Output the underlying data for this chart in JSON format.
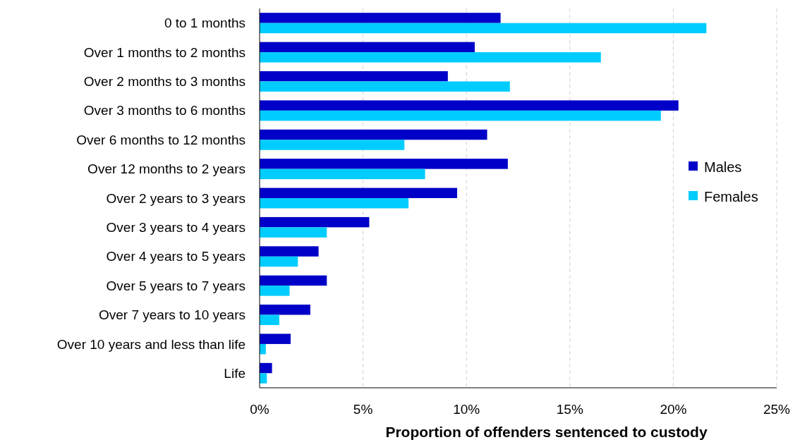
{
  "chart_data": {
    "type": "bar",
    "orientation": "horizontal",
    "xlabel": "Proportion of offenders sentenced to custody",
    "categories": [
      "0 to 1 months",
      "Over 1 months to 2 months",
      "Over 2 months to 3 months",
      "Over 3 months to 6 months",
      "Over 6 months to 12 months",
      "Over 12 months to 2 years",
      "Over 2 years to 3 years",
      "Over 3 years to 4 years",
      "Over 4 years to 5 years",
      "Over 5 years to 7 years",
      "Over 7 years to 10 years",
      "Over 10 years and less than life",
      "Life"
    ],
    "series": [
      {
        "name": "Males",
        "color": "#0000c8",
        "values": [
          11.65,
          10.4,
          9.1,
          20.25,
          11.0,
          12.0,
          9.55,
          5.3,
          2.85,
          3.25,
          2.45,
          1.5,
          0.6
        ]
      },
      {
        "name": "Females",
        "color": "#00ccff",
        "values": [
          21.6,
          16.5,
          12.1,
          19.4,
          7.0,
          8.0,
          7.2,
          3.25,
          1.85,
          1.45,
          0.95,
          0.3,
          0.35
        ]
      }
    ],
    "xlim": [
      0,
      25
    ],
    "xticks": [
      {
        "value": 0,
        "label": "0%"
      },
      {
        "value": 5,
        "label": "5%"
      },
      {
        "value": 10,
        "label": "10%"
      },
      {
        "value": 15,
        "label": "15%"
      },
      {
        "value": 20,
        "label": "20%"
      },
      {
        "value": 25,
        "label": "25%"
      }
    ],
    "grid": "x",
    "legend": "right"
  }
}
